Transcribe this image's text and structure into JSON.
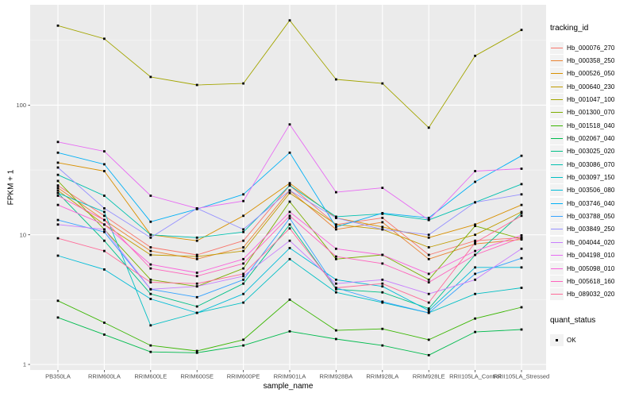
{
  "figure": {
    "y_axis_title": "FPKM + 1",
    "x_axis_title": "sample_name"
  },
  "legend": {
    "tracking_title": "tracking_id",
    "quant_title": "quant_status",
    "quant_entries": [
      {
        "label": "OK",
        "shape": "black-square"
      }
    ]
  },
  "colors": {
    "panel_bg": "#EBEBEB",
    "grid_major": "#FFFFFF",
    "grid_minor": "#F7F7F7",
    "tick_label": "#4D4D4D",
    "tick_mark": "#333333",
    "point": "#000000",
    "legend_key_bg": "#F2F2F2"
  },
  "chart_data": {
    "type": "line",
    "title": "",
    "xlabel": "sample_name",
    "ylabel": "FPKM + 1",
    "y_scale": "log10",
    "ylim": [
      1,
      594
    ],
    "y_breaks": [
      1,
      10,
      100
    ],
    "y_break_labels": [
      "1",
      "10",
      "100"
    ],
    "y_minor_breaks": [
      3.162,
      31.62,
      316.2
    ],
    "grid": true,
    "legend_position": "right",
    "point_shape": "filled-black-square",
    "categories": [
      "PB350LA",
      "RRIM600LA",
      "RRIM600LE",
      "RRIM600SE",
      "RRIM600PE",
      "RRIM901LA",
      "RRIM928BA",
      "RRIM928LA",
      "RRIM928LE",
      "RRII105LA_Control",
      "RRII105LA_Stressed"
    ],
    "series": [
      {
        "name": "Hb_000076_270",
        "color": "#F8766D",
        "values": [
          24,
          14,
          8,
          7,
          9,
          24,
          12,
          13.5,
          7,
          9,
          9.5
        ]
      },
      {
        "name": "Hb_000358_250",
        "color": "#EA8331",
        "values": [
          23,
          13,
          7.5,
          6.5,
          8,
          22,
          11,
          12.5,
          6.5,
          8.5,
          9.2
        ]
      },
      {
        "name": "Hb_000526_050",
        "color": "#D89000",
        "values": [
          36,
          31,
          10,
          9,
          14,
          25,
          13.5,
          11.5,
          9.5,
          12,
          17
        ]
      },
      {
        "name": "Hb_000640_230",
        "color": "#C09B00",
        "values": [
          22,
          12,
          7,
          6.8,
          7.5,
          21,
          12,
          11,
          8,
          10,
          15
        ]
      },
      {
        "name": "Hb_001047_100",
        "color": "#A3A500",
        "values": [
          410,
          325,
          165,
          143,
          147,
          450,
          158,
          147,
          67,
          240,
          380
        ]
      },
      {
        "name": "Hb_001300_070",
        "color": "#7CAE00",
        "values": [
          26,
          11,
          4.5,
          4,
          5.5,
          18,
          6.5,
          7,
          4.5,
          11.7,
          9.3
        ]
      },
      {
        "name": "Hb_001518_040",
        "color": "#39B600",
        "values": [
          3.1,
          2.1,
          1.4,
          1.27,
          1.55,
          3.16,
          1.83,
          1.88,
          1.55,
          2.26,
          2.76
        ]
      },
      {
        "name": "Hb_002067_040",
        "color": "#00BB4E",
        "values": [
          2.3,
          1.7,
          1.25,
          1.23,
          1.4,
          1.8,
          1.57,
          1.4,
          1.18,
          1.78,
          1.86
        ]
      },
      {
        "name": "Hb_003025_020",
        "color": "#00C087",
        "values": [
          21,
          9,
          3.5,
          2.8,
          4.2,
          12,
          3.8,
          3.6,
          2.7,
          7,
          14.7
        ]
      },
      {
        "name": "Hb_003086_070",
        "color": "#00C0AF",
        "values": [
          29,
          20,
          10,
          9.5,
          10.5,
          24,
          13.8,
          14.5,
          13,
          17.8,
          24.6
        ]
      },
      {
        "name": "Hb_003097_150",
        "color": "#00BFC4",
        "values": [
          21,
          15,
          2.0,
          2.5,
          3.0,
          6.5,
          3.6,
          3.0,
          2.5,
          3.5,
          3.9
        ]
      },
      {
        "name": "Hb_003506_080",
        "color": "#00BCD8",
        "values": [
          6.9,
          5.4,
          3.2,
          2.5,
          3.5,
          7.9,
          4.5,
          4.0,
          2.6,
          5.6,
          5.6
        ]
      },
      {
        "name": "Hb_003746_040",
        "color": "#00B0F6",
        "values": [
          43,
          35,
          12.6,
          15.8,
          20.5,
          43,
          11.5,
          14.7,
          13.5,
          25.6,
          40.7
        ]
      },
      {
        "name": "Hb_003788_050",
        "color": "#35A2FF",
        "values": [
          13,
          10.5,
          3.8,
          3.3,
          4.5,
          13.4,
          3.9,
          3.05,
          2.5,
          5.0,
          6.6
        ]
      },
      {
        "name": "Hb_003849_250",
        "color": "#9590FF",
        "values": [
          33,
          16,
          9.5,
          16,
          11,
          22,
          13.5,
          11,
          10,
          17.8,
          20.5
        ]
      },
      {
        "name": "Hb_004044_020",
        "color": "#C77CFF",
        "values": [
          12,
          11,
          3.8,
          4.0,
          4.8,
          9,
          4.2,
          4.5,
          3.5,
          4.5,
          7.8
        ]
      },
      {
        "name": "Hb_004198_010",
        "color": "#E76BF3",
        "values": [
          52,
          44,
          20,
          16,
          18.2,
          71,
          21.3,
          23,
          13,
          31,
          32.3
        ]
      },
      {
        "name": "Hb_005098_010",
        "color": "#FA62DB",
        "values": [
          17,
          12,
          5.9,
          5.1,
          6.5,
          15,
          7.8,
          7.0,
          5.0,
          7.5,
          9.9
        ]
      },
      {
        "name": "Hb_005618_160",
        "color": "#FF62BC",
        "values": [
          20,
          13,
          5.5,
          4.8,
          6,
          14,
          6.8,
          6.0,
          4.3,
          7.0,
          9.5
        ]
      },
      {
        "name": "Hb_089032_020",
        "color": "#FF6A98",
        "values": [
          9.4,
          7.5,
          4.3,
          4.2,
          5,
          11.2,
          3.9,
          4.2,
          3.0,
          8.7,
          14.0
        ]
      }
    ]
  }
}
